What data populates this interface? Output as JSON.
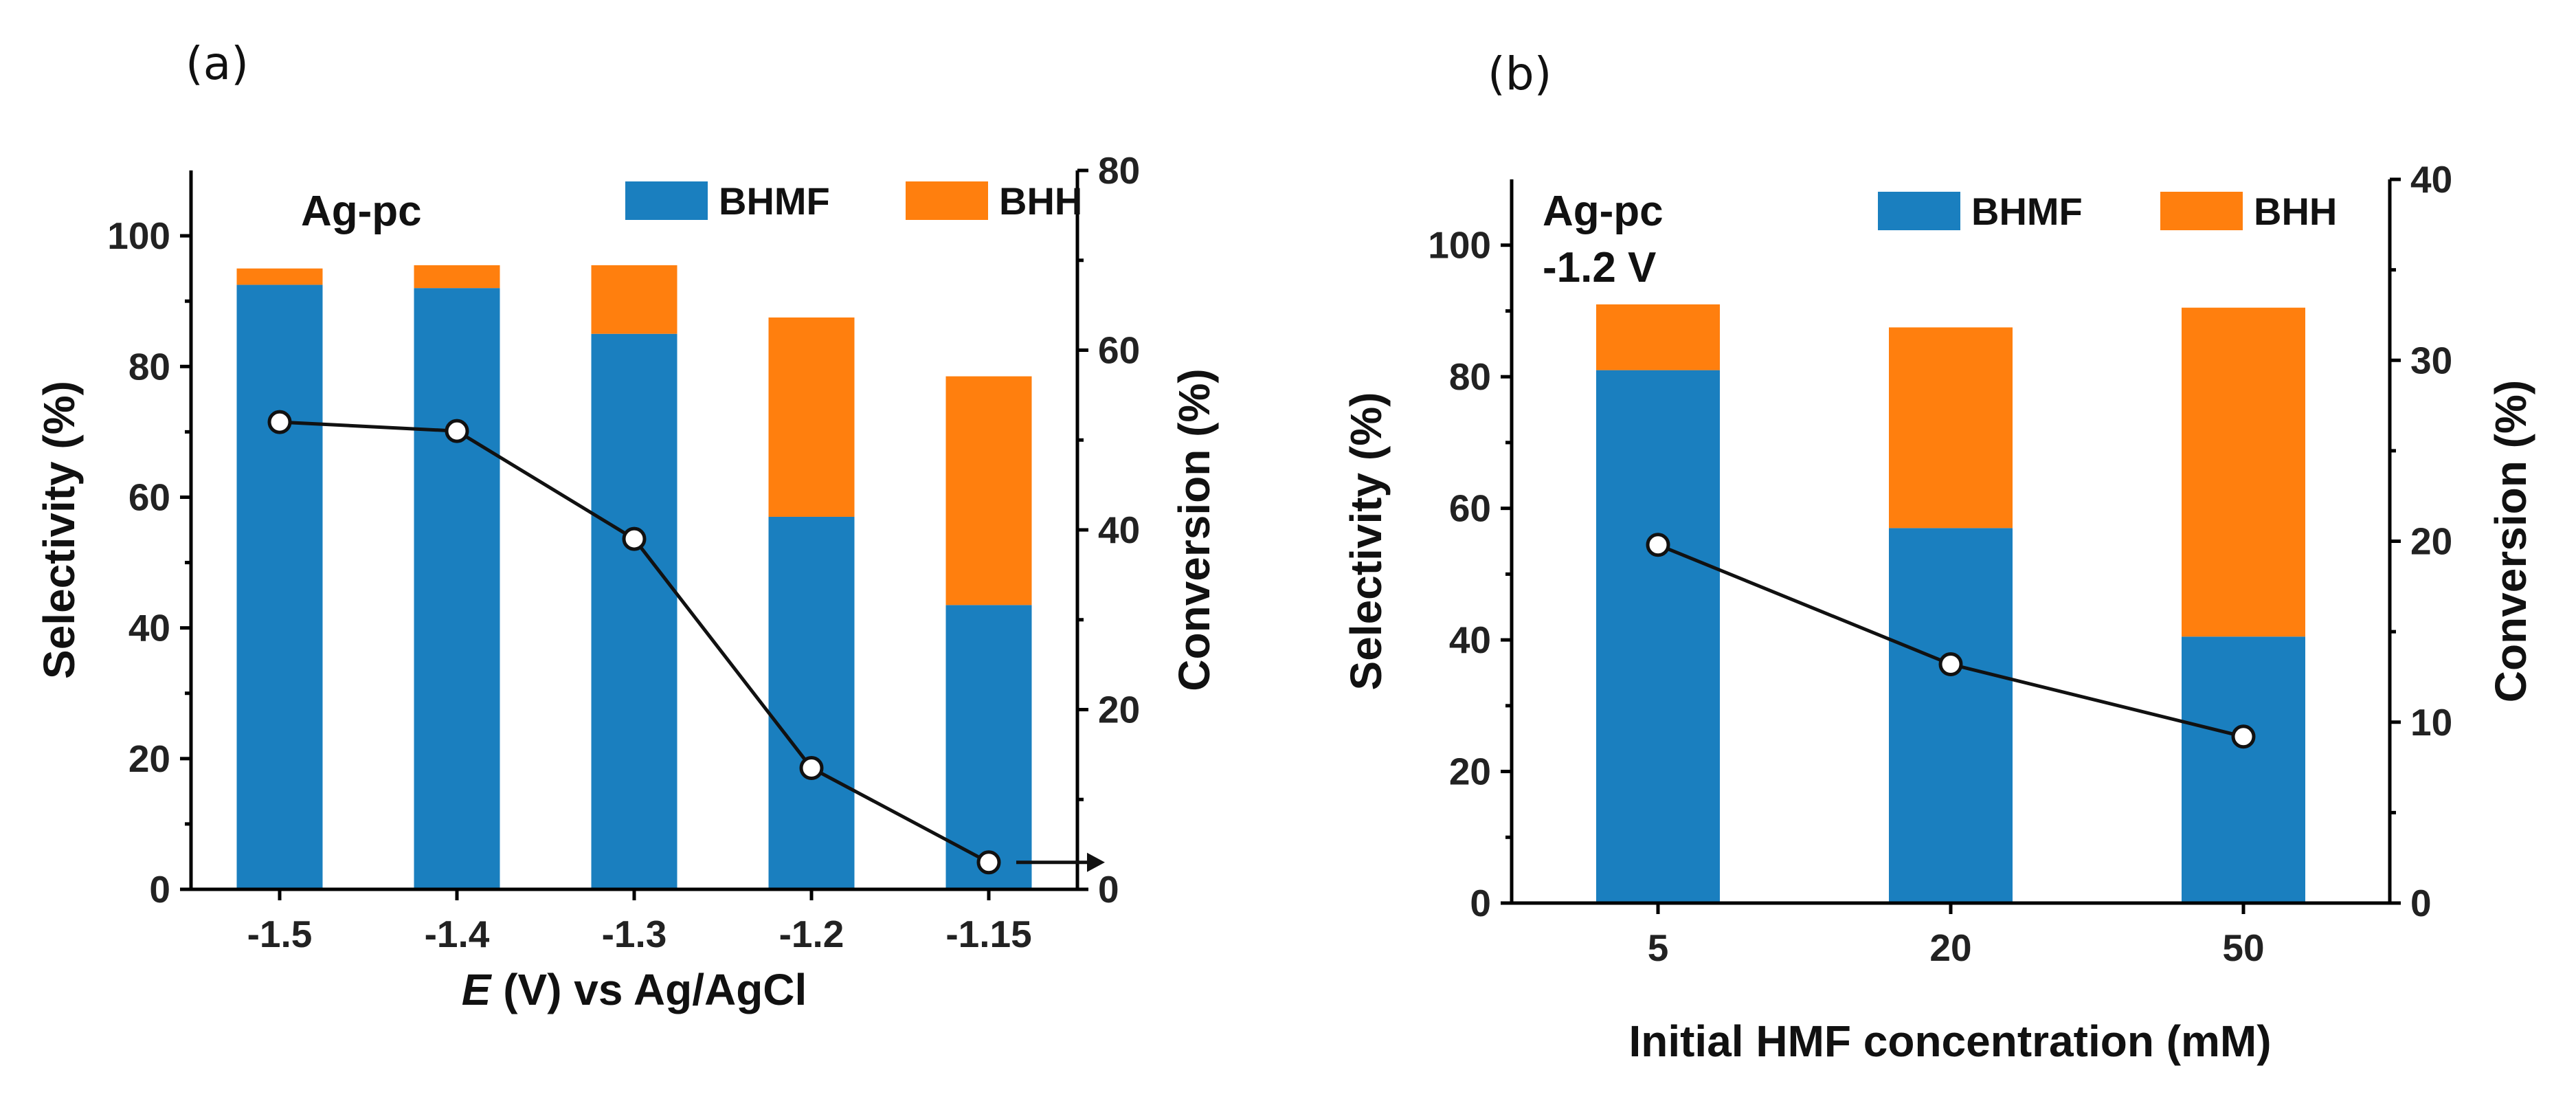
{
  "figure": {
    "panel_a_label": "(a)",
    "panel_b_label": "(b)"
  },
  "chart_data": [
    {
      "type": "bar",
      "stacked": true,
      "secondary_line": true,
      "annotation": [
        "Ag-pc"
      ],
      "categories": [
        "-1.5",
        "-1.4",
        "-1.3",
        "-1.2",
        "-1.15"
      ],
      "series": [
        {
          "name": "BHMF",
          "color": "#1a7fbf",
          "values": [
            92.5,
            92,
            85,
            57,
            43.5
          ]
        },
        {
          "name": "BHH",
          "color": "#ff7f0e",
          "values": [
            2.5,
            3.5,
            10.5,
            30.5,
            35
          ]
        }
      ],
      "line_series": {
        "name": "Conversion",
        "axis": "right",
        "values": [
          52,
          51,
          39,
          13.5,
          3
        ]
      },
      "xlabel_italic": "E",
      "xlabel_rest": " (V) vs Ag/AgCl",
      "ylabel": "Selectivity (%)",
      "y2label": "Conversion (%)",
      "ylim": [
        0,
        110
      ],
      "y2lim": [
        0,
        80
      ],
      "yticks": [
        0,
        20,
        40,
        60,
        80,
        100
      ],
      "y2ticks": [
        0,
        20,
        40,
        60,
        80
      ],
      "ytick_labels": [
        "0",
        "20",
        "40",
        "60",
        "80",
        "100"
      ],
      "y2tick_labels": [
        "0",
        "20",
        "40",
        "60",
        "80"
      ],
      "arrow": "right"
    },
    {
      "type": "bar",
      "stacked": true,
      "secondary_line": true,
      "annotation": [
        "Ag-pc",
        "-1.2 V"
      ],
      "categories": [
        "5",
        "20",
        "50"
      ],
      "series": [
        {
          "name": "BHMF",
          "color": "#1a7fbf",
          "values": [
            81,
            57,
            40.5
          ]
        },
        {
          "name": "BHH",
          "color": "#ff7f0e",
          "values": [
            10,
            30.5,
            50
          ]
        }
      ],
      "line_series": {
        "name": "Conversion",
        "axis": "right",
        "values": [
          19.8,
          13.2,
          9.2
        ]
      },
      "xlabel": "Initial HMF concentration (mM)",
      "ylabel": "Selectivity (%)",
      "y2label": "Conversion (%)",
      "ylim": [
        0,
        110
      ],
      "y2lim": [
        0,
        40
      ],
      "yticks": [
        0,
        20,
        40,
        60,
        80,
        100
      ],
      "y2ticks": [
        0,
        10,
        20,
        30,
        40
      ],
      "ytick_labels": [
        "0",
        "20",
        "40",
        "60",
        "80",
        "100"
      ],
      "y2tick_labels": [
        "0",
        "10",
        "20",
        "30",
        "40"
      ]
    }
  ]
}
